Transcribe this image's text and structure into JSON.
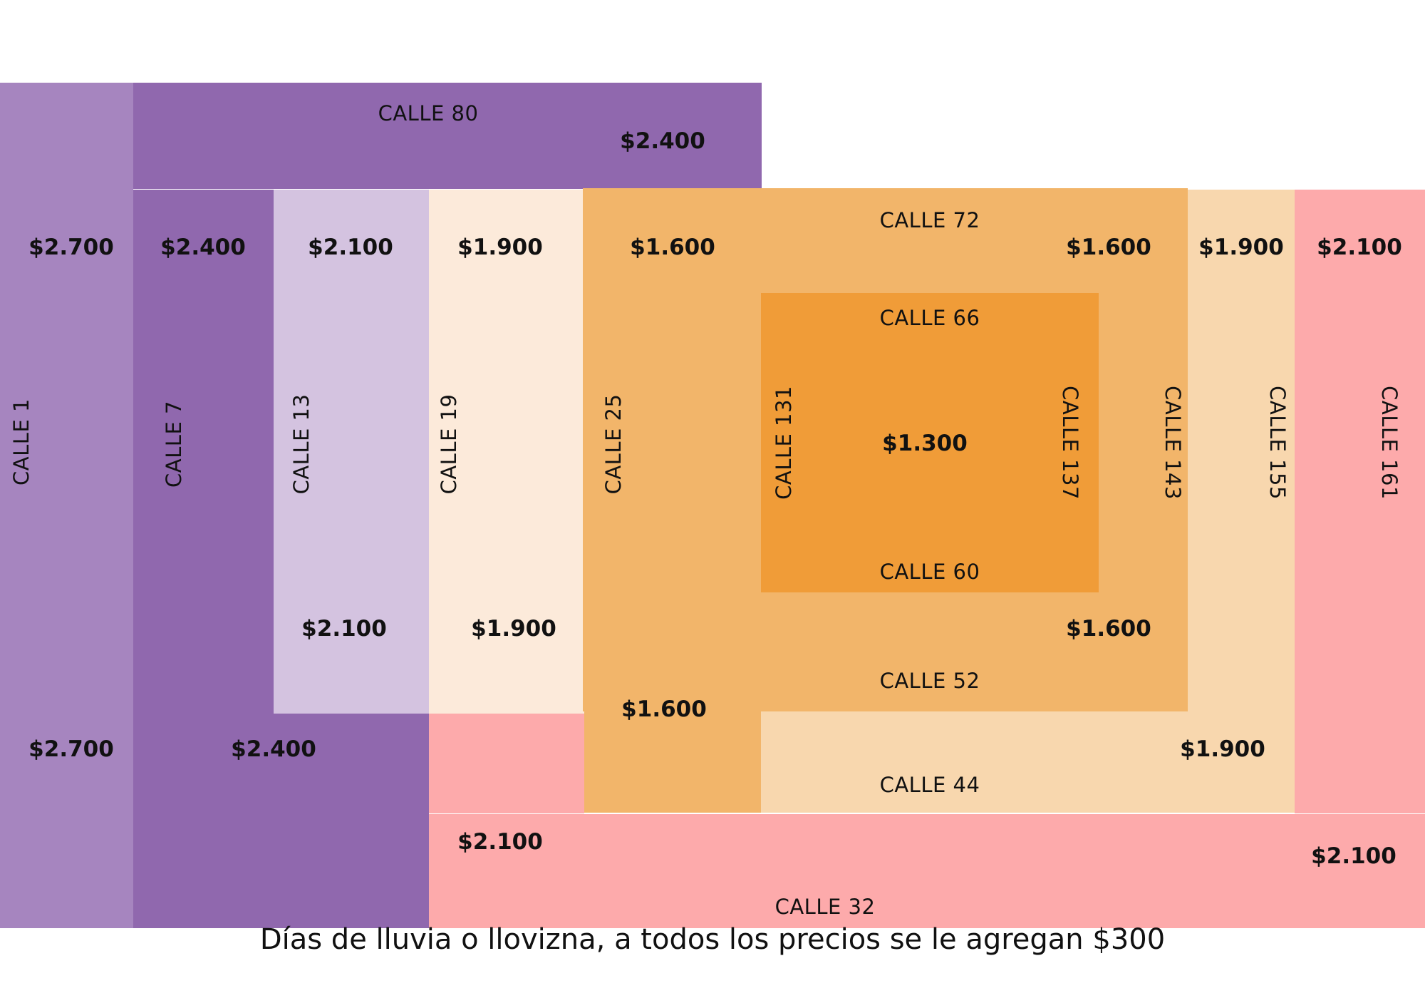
{
  "colors": {
    "lavender": "#a685bf",
    "purple": "#9068ae",
    "lilac": "#d4c3e0",
    "cream": "#fceada",
    "orange_light": "#f2b56a",
    "orange": "#f09c38",
    "peach": "#f8d7ae",
    "pink": "#fdaaab"
  },
  "streets": {
    "calle_80": "CALLE 80",
    "calle_72": "CALLE 72",
    "calle_66": "CALLE 66",
    "calle_60": "CALLE 60",
    "calle_52": "CALLE 52",
    "calle_44": "CALLE 44",
    "calle_32": "CALLE 32",
    "calle_1": "CALLE 1",
    "calle_7": "CALLE 7",
    "calle_13": "CALLE 13",
    "calle_19": "CALLE 19",
    "calle_25": "CALLE 25",
    "calle_131": "CALLE 131",
    "calle_137": "CALLE 137",
    "calle_143": "CALLE 143",
    "calle_155": "CALLE 155",
    "calle_161": "CALLE 161"
  },
  "prices": {
    "p2700": "$2.700",
    "p2400": "$2.400",
    "p2100": "$2.100",
    "p1900": "$1.900",
    "p1600": "$1.600",
    "p1300": "$1.300"
  },
  "footer": "Días de lluvia o llovizna, a todos los precios se le agregan $300"
}
